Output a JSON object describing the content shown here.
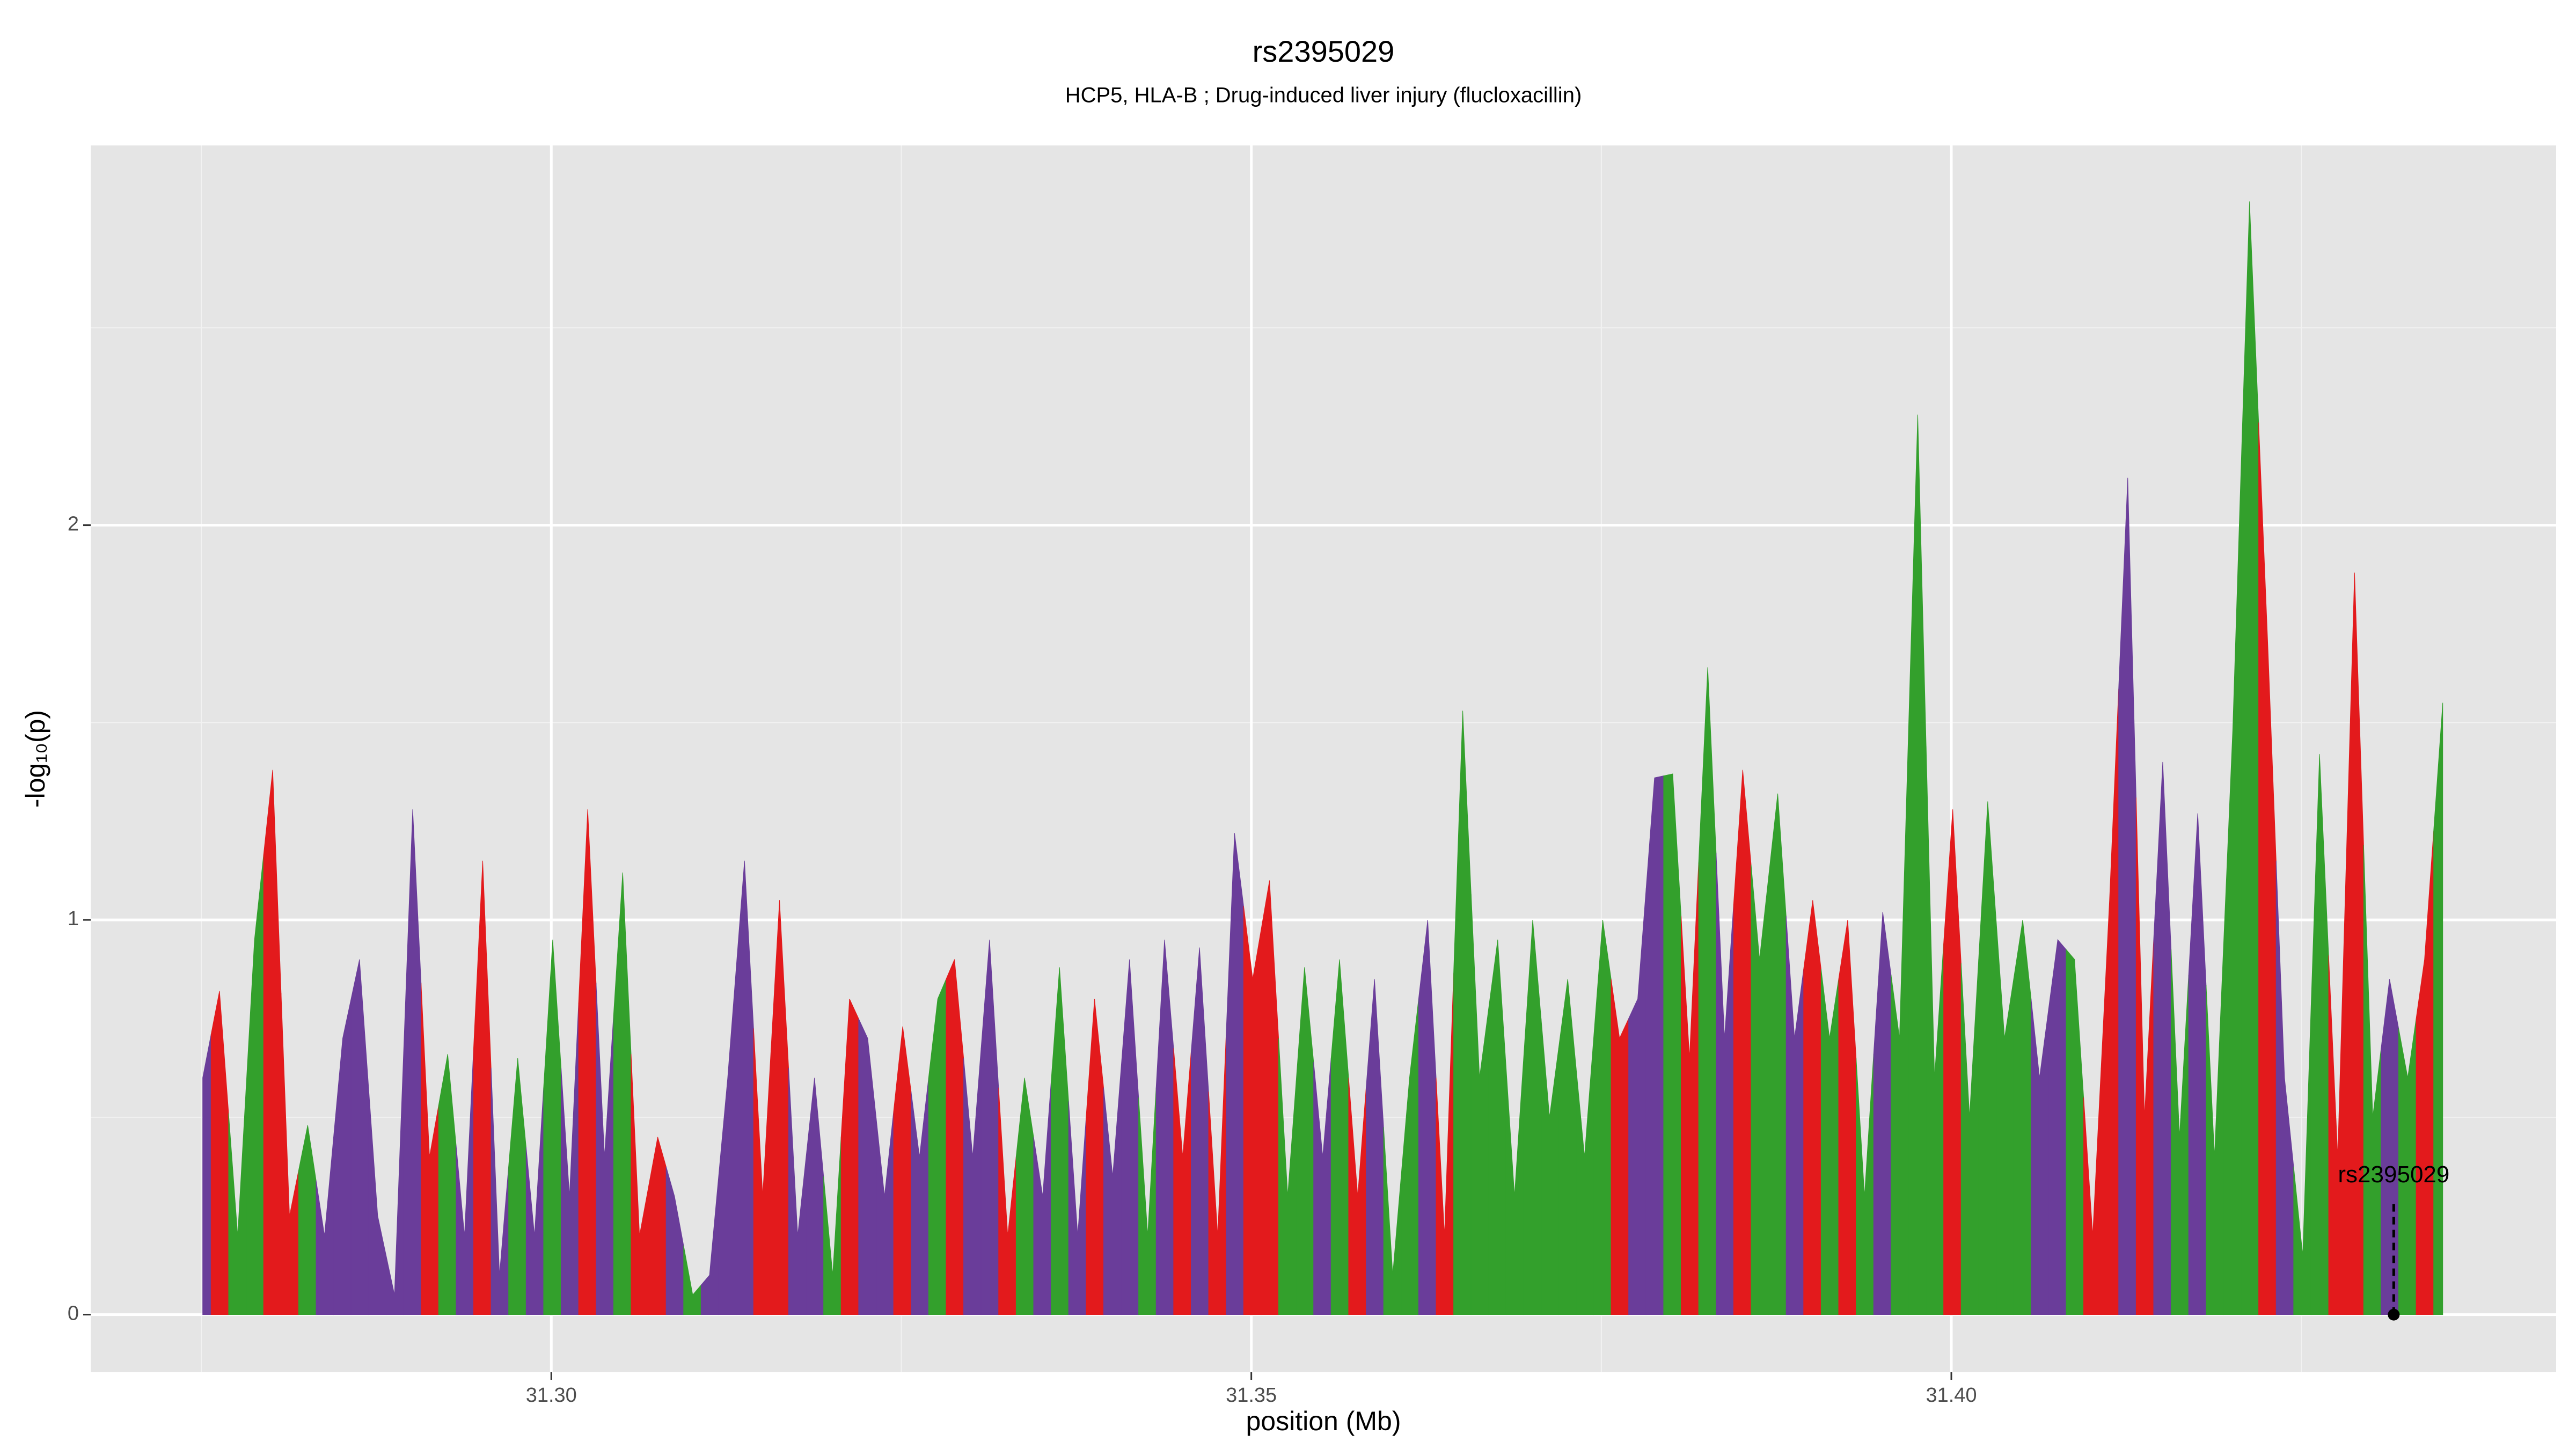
{
  "chart_data": {
    "type": "area",
    "title": "rs2395029",
    "subtitle": "HCP5, HLA-B ; Drug-induced liver injury (flucloxacillin)",
    "x_label": "position (Mb)",
    "y_label": "-log₁₀(p)",
    "xlim": [
      31.2671,
      31.4432
    ],
    "ylim": [
      -0.146,
      2.962
    ],
    "xticks": [
      {
        "value": 31.3,
        "label": "31.30"
      },
      {
        "value": 31.35,
        "label": "31.35"
      },
      {
        "value": 31.4,
        "label": "31.40"
      }
    ],
    "yticks": [
      0,
      1,
      2
    ],
    "xminor": [
      31.275,
      31.325,
      31.375,
      31.425
    ],
    "yminor": [
      0.5,
      1.5,
      2.5
    ],
    "grid": true,
    "x": [
      31.2751,
      31.2763,
      31.2776,
      31.2788,
      31.2801,
      31.2813,
      31.2826,
      31.2838,
      31.2851,
      31.2863,
      31.2876,
      31.2888,
      31.2901,
      31.2913,
      31.2926,
      31.2938,
      31.2951,
      31.2963,
      31.2976,
      31.2988,
      31.3001,
      31.3013,
      31.3026,
      31.3038,
      31.3051,
      31.3063,
      31.3076,
      31.3088,
      31.3101,
      31.3113,
      31.3126,
      31.3138,
      31.3151,
      31.3163,
      31.3176,
      31.3188,
      31.3201,
      31.3213,
      31.3226,
      31.3238,
      31.3251,
      31.3263,
      31.3276,
      31.3288,
      31.3301,
      31.3313,
      31.3326,
      31.3338,
      31.3351,
      31.3363,
      31.3376,
      31.3388,
      31.3401,
      31.3413,
      31.3426,
      31.3438,
      31.3451,
      31.3463,
      31.3476,
      31.3488,
      31.3501,
      31.3513,
      31.3526,
      31.3538,
      31.3551,
      31.3563,
      31.3576,
      31.3588,
      31.3601,
      31.3613,
      31.3626,
      31.3638,
      31.3651,
      31.3663,
      31.3676,
      31.3688,
      31.3701,
      31.3713,
      31.3726,
      31.3738,
      31.3751,
      31.3763,
      31.3776,
      31.3788,
      31.3801,
      31.3813,
      31.3826,
      31.3838,
      31.3851,
      31.3863,
      31.3876,
      31.3888,
      31.3901,
      31.3913,
      31.3926,
      31.3938,
      31.3951,
      31.3963,
      31.3976,
      31.3988,
      31.4001,
      31.4013,
      31.4026,
      31.4038,
      31.4051,
      31.4063,
      31.4076,
      31.4088,
      31.4101,
      31.4113,
      31.4126,
      31.4138,
      31.4151,
      31.4163,
      31.4176,
      31.4188,
      31.4201,
      31.4213,
      31.4226,
      31.4238,
      31.4251,
      31.4263,
      31.4276,
      31.4288,
      31.4301,
      31.4313,
      31.4326,
      31.4338,
      31.4351
    ],
    "values": [
      0.6,
      0.82,
      0.2,
      0.95,
      1.38,
      0.25,
      0.48,
      0.2,
      0.7,
      0.9,
      0.25,
      0.05,
      1.28,
      0.4,
      0.66,
      0.2,
      1.15,
      0.1,
      0.65,
      0.2,
      0.95,
      0.3,
      1.28,
      0.4,
      1.12,
      0.2,
      0.45,
      0.3,
      0.05,
      0.1,
      0.6,
      1.15,
      0.3,
      1.05,
      0.2,
      0.6,
      0.1,
      0.8,
      0.7,
      0.3,
      0.73,
      0.4,
      0.8,
      0.9,
      0.4,
      0.95,
      0.2,
      0.6,
      0.3,
      0.88,
      0.2,
      0.8,
      0.35,
      0.9,
      0.2,
      0.95,
      0.4,
      0.93,
      0.2,
      1.22,
      0.85,
      1.1,
      0.3,
      0.88,
      0.4,
      0.9,
      0.3,
      0.85,
      0.1,
      0.6,
      1.0,
      0.2,
      1.53,
      0.6,
      0.95,
      0.3,
      1.0,
      0.5,
      0.85,
      0.4,
      1.0,
      0.7,
      0.8,
      1.36,
      1.37,
      0.65,
      1.64,
      0.7,
      1.38,
      0.9,
      1.32,
      0.7,
      1.05,
      0.7,
      1.0,
      0.3,
      1.02,
      0.7,
      2.28,
      0.6,
      1.28,
      0.5,
      1.3,
      0.7,
      1.0,
      0.6,
      0.95,
      0.9,
      0.2,
      1.05,
      2.12,
      0.5,
      1.4,
      0.45,
      1.27,
      0.4,
      1.48,
      2.82,
      1.7,
      0.6,
      0.15,
      1.42,
      0.4,
      1.88,
      0.5,
      0.85,
      0.6,
      0.9,
      1.55
    ],
    "colors": [
      "#6a3d9a",
      "#e31a1c",
      "#33a02c",
      "#33a02c",
      "#e31a1c",
      "#e31a1c",
      "#33a02c",
      "#6a3d9a",
      "#6a3d9a",
      "#6a3d9a",
      "#6a3d9a",
      "#6a3d9a",
      "#6a3d9a",
      "#e31a1c",
      "#33a02c",
      "#6a3d9a",
      "#e31a1c",
      "#6a3d9a",
      "#33a02c",
      "#6a3d9a",
      "#33a02c",
      "#6a3d9a",
      "#e31a1c",
      "#6a3d9a",
      "#33a02c",
      "#e31a1c",
      "#e31a1c",
      "#6a3d9a",
      "#33a02c",
      "#6a3d9a",
      "#6a3d9a",
      "#6a3d9a",
      "#e31a1c",
      "#e31a1c",
      "#6a3d9a",
      "#6a3d9a",
      "#33a02c",
      "#e31a1c",
      "#6a3d9a",
      "#6a3d9a",
      "#e31a1c",
      "#6a3d9a",
      "#33a02c",
      "#e31a1c",
      "#6a3d9a",
      "#6a3d9a",
      "#e31a1c",
      "#33a02c",
      "#6a3d9a",
      "#33a02c",
      "#6a3d9a",
      "#e31a1c",
      "#6a3d9a",
      "#6a3d9a",
      "#33a02c",
      "#6a3d9a",
      "#e31a1c",
      "#6a3d9a",
      "#e31a1c",
      "#6a3d9a",
      "#e31a1c",
      "#e31a1c",
      "#33a02c",
      "#33a02c",
      "#6a3d9a",
      "#33a02c",
      "#e31a1c",
      "#6a3d9a",
      "#33a02c",
      "#33a02c",
      "#6a3d9a",
      "#e31a1c",
      "#33a02c",
      "#33a02c",
      "#33a02c",
      "#33a02c",
      "#33a02c",
      "#33a02c",
      "#33a02c",
      "#33a02c",
      "#33a02c",
      "#e31a1c",
      "#6a3d9a",
      "#6a3d9a",
      "#33a02c",
      "#e31a1c",
      "#33a02c",
      "#6a3d9a",
      "#e31a1c",
      "#33a02c",
      "#33a02c",
      "#6a3d9a",
      "#e31a1c",
      "#33a02c",
      "#e31a1c",
      "#33a02c",
      "#6a3d9a",
      "#33a02c",
      "#33a02c",
      "#33a02c",
      "#e31a1c",
      "#33a02c",
      "#33a02c",
      "#33a02c",
      "#33a02c",
      "#6a3d9a",
      "#6a3d9a",
      "#33a02c",
      "#e31a1c",
      "#e31a1c",
      "#6a3d9a",
      "#e31a1c",
      "#6a3d9a",
      "#33a02c",
      "#6a3d9a",
      "#33a02c",
      "#33a02c",
      "#33a02c",
      "#e31a1c",
      "#6a3d9a",
      "#33a02c",
      "#33a02c",
      "#e31a1c",
      "#e31a1c",
      "#33a02c",
      "#6a3d9a",
      "#33a02c",
      "#e31a1c",
      "#33a02c"
    ],
    "annotation": {
      "label": "rs2395029",
      "x": 31.4316,
      "y": 0
    }
  }
}
